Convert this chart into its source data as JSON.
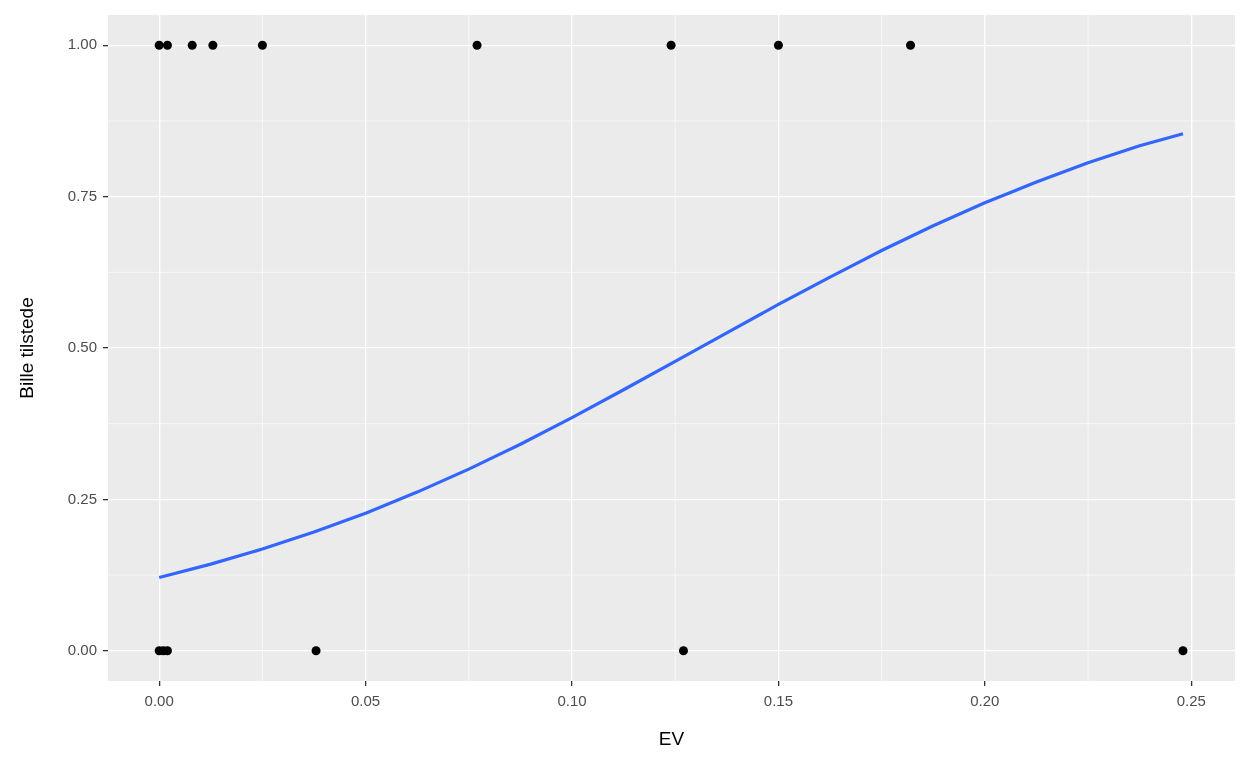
{
  "chart_data": {
    "type": "scatter",
    "xlabel": "EV",
    "ylabel": "Bille tilstede",
    "xlim": [
      -0.0124,
      0.2606
    ],
    "ylim": [
      -0.05,
      1.05
    ],
    "xticks": [
      {
        "value": 0,
        "label": "0.00"
      },
      {
        "value": 0.05,
        "label": "0.05"
      },
      {
        "value": 0.1,
        "label": "0.10"
      },
      {
        "value": 0.15,
        "label": "0.15"
      },
      {
        "value": 0.2,
        "label": "0.20"
      },
      {
        "value": 0.25,
        "label": "0.25"
      }
    ],
    "yticks": [
      {
        "value": 0,
        "label": "0.00"
      },
      {
        "value": 0.25,
        "label": "0.25"
      },
      {
        "value": 0.5,
        "label": "0.50"
      },
      {
        "value": 0.75,
        "label": "0.75"
      },
      {
        "value": 1,
        "label": "1.00"
      }
    ],
    "grid": true,
    "series": [
      {
        "color": "#000000",
        "marker": "circle",
        "x": [
          0,
          0.002,
          0.008,
          0.013,
          0.025,
          0.077,
          0.124,
          0.15,
          0.182,
          0,
          0.001,
          0.002,
          0.038,
          0.127,
          0.248
        ],
        "values": [
          1,
          1,
          1,
          1,
          1,
          1,
          1,
          1,
          1,
          0,
          0,
          0,
          0,
          0,
          0
        ]
      },
      {
        "type": "line",
        "color": "#3366ff",
        "x": [
          0,
          0.0125,
          0.025,
          0.0375,
          0.05,
          0.0625,
          0.075,
          0.0875,
          0.1,
          0.1125,
          0.125,
          0.1375,
          0.15,
          0.1625,
          0.175,
          0.1875,
          0.2,
          0.2125,
          0.225,
          0.2375,
          0.248
        ],
        "values": [
          0.121,
          0.143,
          0.168,
          0.196,
          0.227,
          0.262,
          0.3,
          0.341,
          0.385,
          0.431,
          0.478,
          0.525,
          0.572,
          0.617,
          0.661,
          0.702,
          0.74,
          0.774,
          0.806,
          0.834,
          0.854
        ]
      }
    ]
  }
}
